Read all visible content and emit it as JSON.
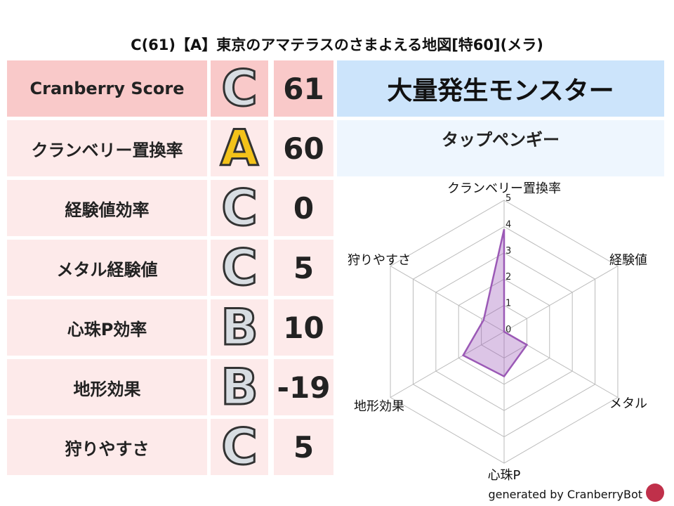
{
  "title": "C(61)【A】東京のアマテラスのさまよえる地図[特60](メラ)",
  "rows": [
    {
      "label": "Cranberry Score",
      "grade": "C",
      "value": "61",
      "bg": "#f9c9c9"
    },
    {
      "label": "クランベリー置換率",
      "grade": "A",
      "value": "60",
      "bg": "#fdeaea"
    },
    {
      "label": "経験値効率",
      "grade": "C",
      "value": "0",
      "bg": "#fdeaea"
    },
    {
      "label": "メタル経験値",
      "grade": "C",
      "value": "5",
      "bg": "#fdeaea"
    },
    {
      "label": "心珠P効率",
      "grade": "B",
      "value": "10",
      "bg": "#fdeaea"
    },
    {
      "label": "地形効果",
      "grade": "B",
      "value": "-19",
      "bg": "#fdeaea"
    },
    {
      "label": "狩りやすさ",
      "grade": "C",
      "value": "5",
      "bg": "#fdeaea"
    }
  ],
  "monster_header": "大量発生モンスター",
  "monster_name": "タップペンギー",
  "chart_data": {
    "type": "radar",
    "axes": [
      "クランベリー置換率",
      "経験値",
      "メタル",
      "心珠P",
      "地形効果",
      "狩りやすさ"
    ],
    "values": [
      3.9,
      0,
      1,
      1.7,
      1.8,
      0.9
    ],
    "range": [
      0,
      5
    ],
    "ticks": [
      "0",
      "1",
      "2",
      "3",
      "4",
      "5"
    ],
    "color": "#9b59b6"
  },
  "footer": "generated by CranberryBot"
}
